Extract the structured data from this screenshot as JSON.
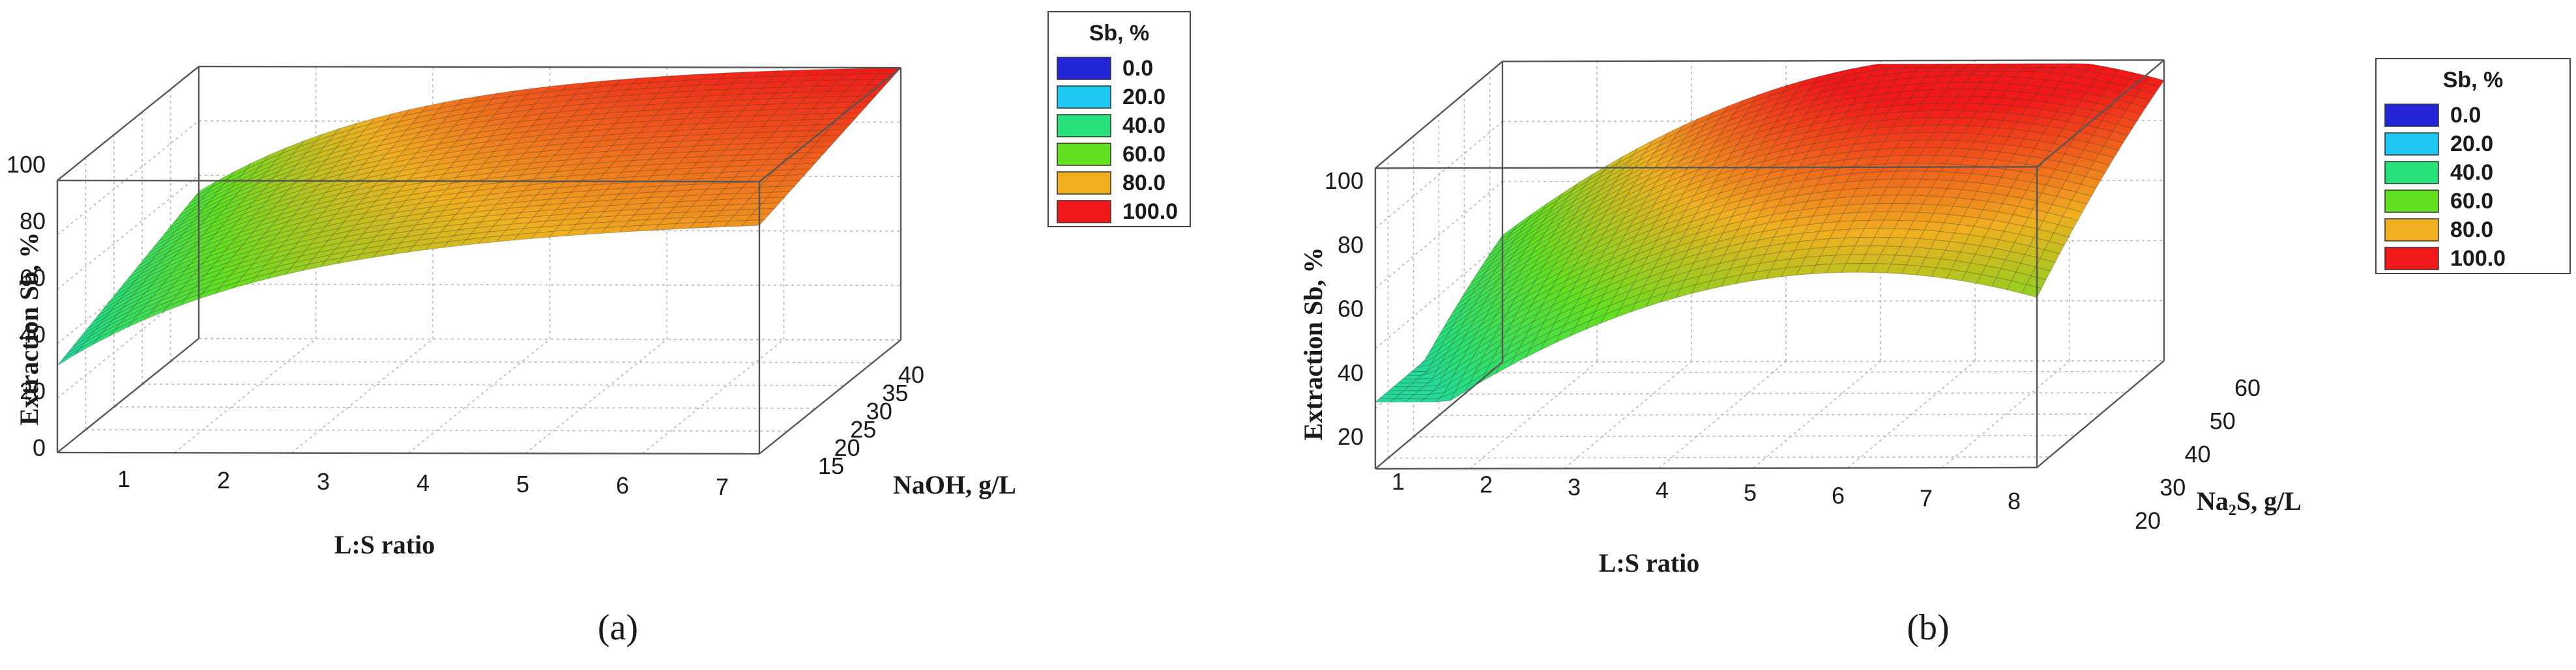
{
  "chart_data": [
    {
      "type": "surface",
      "panel_label": "(a)",
      "xlabel": "L:S ratio",
      "ylabel": "NaOH, g/L",
      "zlabel": "Extraction  Sb, %",
      "x_ticks": [
        "1",
        "2",
        "3",
        "4",
        "5",
        "6",
        "7"
      ],
      "y_ticks": [
        "15",
        "20",
        "25",
        "30",
        "35",
        "40"
      ],
      "z_ticks": [
        "0",
        "20",
        "40",
        "60",
        "80",
        "100"
      ],
      "xlim": [
        1,
        7
      ],
      "ylim": [
        15,
        40
      ],
      "zlim": [
        0,
        100
      ],
      "surface": {
        "description_points": {
          "corner_x1_ylow": 32,
          "corner_x7_ylow": 78,
          "corner_x1_yhigh": 56,
          "corner_x7_yhigh": 92,
          "ridge_x3_ymid": 75
        },
        "grid_resolution": [
          40,
          28
        ]
      },
      "legend": {
        "title": "Sb, %",
        "placement": "right",
        "entries": [
          {
            "label": "0.0",
            "color": "#2323d8"
          },
          {
            "label": "20.0",
            "color": "#1ec8f0"
          },
          {
            "label": "40.0",
            "color": "#26e07a"
          },
          {
            "label": "60.0",
            "color": "#62e020"
          },
          {
            "label": "80.0",
            "color": "#f0b020"
          },
          {
            "label": "100.0",
            "color": "#f01818"
          }
        ]
      }
    },
    {
      "type": "surface",
      "panel_label": "(b)",
      "xlabel": "L:S ratio",
      "ylabel": "Na₂S, g/L",
      "zlabel": "Extraction  Sb, %",
      "x_ticks": [
        "1",
        "2",
        "3",
        "4",
        "5",
        "6",
        "7",
        "8"
      ],
      "y_ticks": [
        "20",
        "30",
        "40",
        "50",
        "60"
      ],
      "z_ticks": [
        "20",
        "40",
        "60",
        "80",
        "100"
      ],
      "xlim": [
        1,
        8
      ],
      "ylim": [
        15,
        65
      ],
      "zlim": [
        15,
        105
      ],
      "surface": {
        "description_points": {
          "corner_x1_ylow": 42,
          "corner_x8_ylow": 66,
          "corner_x1_yhigh": 70,
          "corner_x8_yhigh": 90,
          "peak_x6_yhigh": 100
        },
        "grid_resolution": [
          44,
          28
        ]
      },
      "legend": {
        "title": "Sb, %",
        "placement": "right",
        "entries": [
          {
            "label": "0.0",
            "color": "#2323d8"
          },
          {
            "label": "20.0",
            "color": "#1ec8f0"
          },
          {
            "label": "40.0",
            "color": "#26e07a"
          },
          {
            "label": "60.0",
            "color": "#62e020"
          },
          {
            "label": "80.0",
            "color": "#f0b020"
          },
          {
            "label": "100.0",
            "color": "#f01818"
          }
        ]
      }
    }
  ]
}
